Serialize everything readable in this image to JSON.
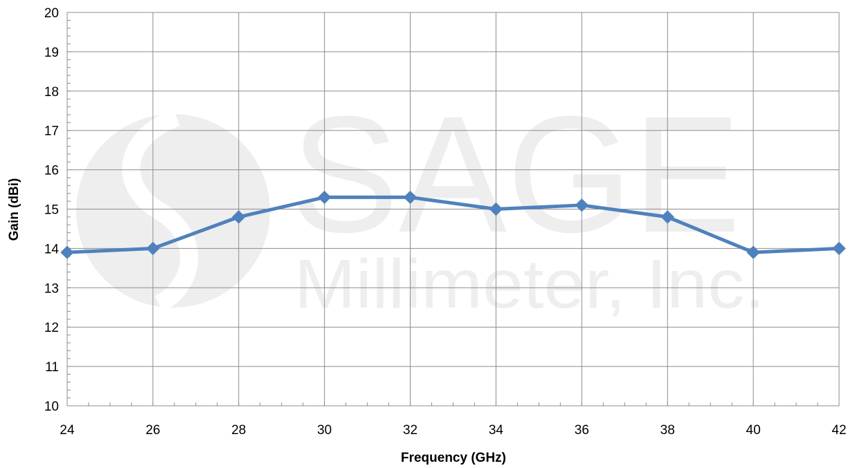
{
  "chart_data": {
    "type": "line",
    "xlabel": "Frequency (GHz)",
    "ylabel": "Gain (dBi)",
    "xlim": [
      24,
      42
    ],
    "ylim": [
      10,
      20
    ],
    "xticks": [
      "24",
      "26",
      "28",
      "30",
      "32",
      "34",
      "36",
      "38",
      "40",
      "42"
    ],
    "yticks": [
      "10",
      "11",
      "12",
      "13",
      "14",
      "15",
      "16",
      "17",
      "18",
      "19",
      "20"
    ],
    "grid": true,
    "series": [
      {
        "x": [
          24,
          26,
          28,
          30,
          32,
          34,
          36,
          38,
          40,
          42
        ],
        "y": [
          13.9,
          14.0,
          14.8,
          15.3,
          15.3,
          15.0,
          15.1,
          14.8,
          13.9,
          14.0
        ],
        "color": "#4f81bd",
        "marker": "diamond"
      }
    ]
  },
  "watermark": {
    "brand": "SAGE",
    "company": "Millimeter, Inc."
  }
}
